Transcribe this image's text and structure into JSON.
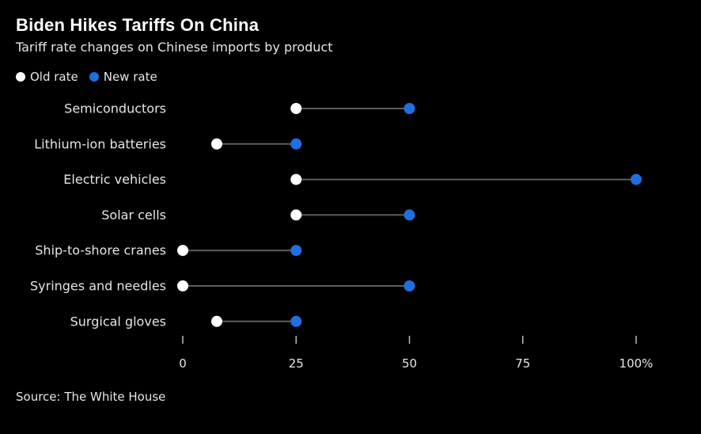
{
  "title": "Biden Hikes Tariffs On China",
  "subtitle": "Tariff rate changes on Chinese imports by product",
  "source": "Source: The White House",
  "legend": [
    {
      "label": "Old rate",
      "color": "#ffffff"
    },
    {
      "label": "New rate",
      "color": "#1f6fe0"
    }
  ],
  "chart_data": {
    "type": "scatter",
    "subtype": "dumbbell",
    "categories": [
      "Semiconductors",
      "Lithium-ion batteries",
      "Electric vehicles",
      "Solar cells",
      "Ship-to-shore cranes",
      "Syringes and needles",
      "Surgical gloves"
    ],
    "series": [
      {
        "name": "Old rate",
        "color": "#ffffff",
        "values": [
          25,
          7.5,
          25,
          25,
          0,
          0,
          7.5
        ]
      },
      {
        "name": "New rate",
        "color": "#1f6fe0",
        "values": [
          50,
          25,
          100,
          50,
          25,
          50,
          25
        ]
      }
    ],
    "x_ticks": [
      0,
      25,
      50,
      75,
      100
    ],
    "x_tick_labels": [
      "0",
      "25",
      "50",
      "75",
      "100%"
    ],
    "xlim": [
      0,
      100
    ],
    "grid": false,
    "legend_position": "top-left"
  }
}
